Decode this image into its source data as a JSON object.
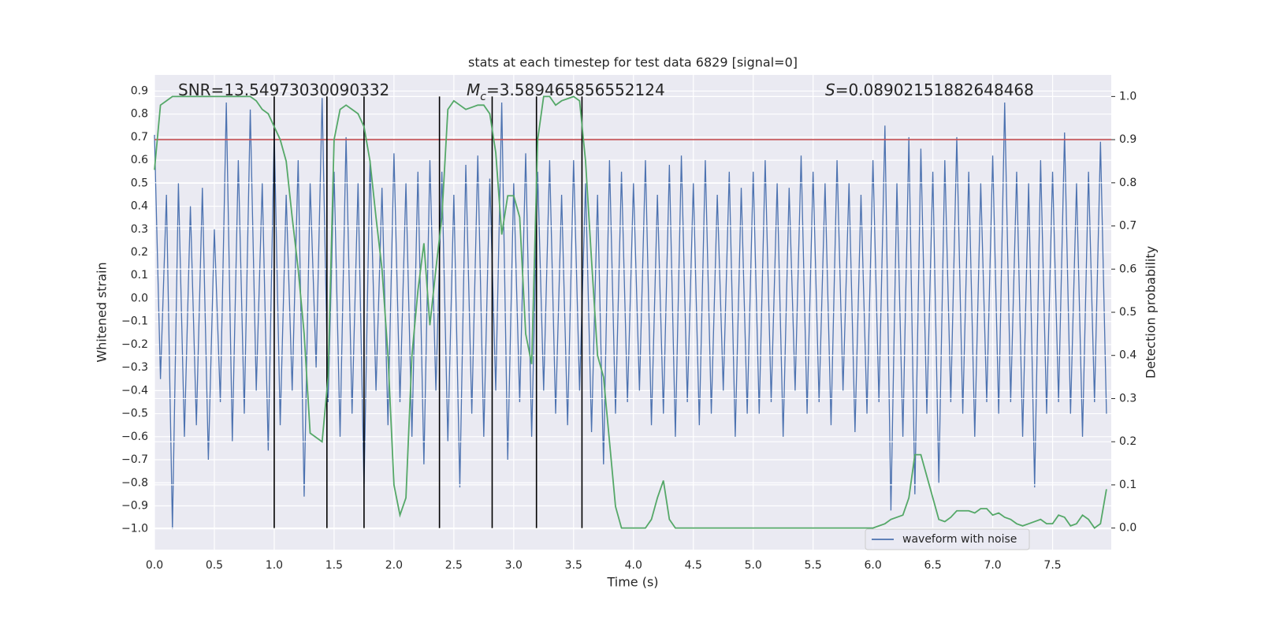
{
  "chart_data": {
    "type": "line",
    "title": "stats at each timestep for test data 6829 [signal=0]",
    "xlabel": "Time (s)",
    "ylabel": "Whitened strain",
    "y2label": "Detection probability",
    "grid": true,
    "legend": "lower right",
    "xlim": [
      0,
      7.99
    ],
    "ylim": [
      -1.09,
      0.97
    ],
    "y2lim": [
      -0.05,
      1.05
    ],
    "xticks": [
      {
        "value": 0,
        "label": "0.0"
      },
      0.5,
      {
        "value": 1,
        "label": "1.0"
      },
      1.5,
      {
        "value": 2,
        "label": "2.0"
      },
      2.5,
      {
        "value": 3,
        "label": "3.0"
      },
      3.5,
      {
        "value": 4,
        "label": "4.0"
      },
      4.5,
      {
        "value": 5,
        "label": "5.0"
      },
      5.5,
      {
        "value": 6,
        "label": "6.0"
      },
      6.5,
      {
        "value": 7,
        "label": "7.0"
      },
      7.5
    ],
    "yticks": [
      {
        "value": -1,
        "label": "−1.0"
      },
      {
        "value": -0.9,
        "label": "−0.9"
      },
      {
        "value": -0.8,
        "label": "−0.8"
      },
      {
        "value": -0.7,
        "label": "−0.7"
      },
      {
        "value": -0.6,
        "label": "−0.6"
      },
      {
        "value": -0.5,
        "label": "−0.5"
      },
      {
        "value": -0.4,
        "label": "−0.4"
      },
      {
        "value": -0.3,
        "label": "−0.3"
      },
      {
        "value": -0.2,
        "label": "−0.2"
      },
      {
        "value": -0.1,
        "label": "−0.1"
      },
      {
        "value": 0,
        "label": "0.0"
      },
      0.1,
      0.2,
      0.3,
      0.4,
      0.5,
      0.6,
      0.7,
      0.8,
      0.9
    ],
    "y2ticks": [
      {
        "value": 0,
        "label": "0.0"
      },
      0.1,
      0.2,
      0.3,
      0.4,
      0.5,
      0.6,
      0.7,
      0.8,
      0.9,
      {
        "value": 1,
        "label": "1.0"
      }
    ],
    "annotations": [
      {
        "text": "SNR=13.54973030090332"
      },
      {
        "text": "M",
        "sub": "c",
        "tail": "=3.589465856552124"
      },
      {
        "text": "S",
        "tail": "=0.08902151882648468"
      }
    ],
    "x": [
      0,
      0.05,
      0.1,
      0.15,
      0.2,
      0.25,
      0.3,
      0.35,
      0.4,
      0.45,
      0.5,
      0.55,
      0.6,
      0.65,
      0.7,
      0.75,
      0.8,
      0.85,
      0.9,
      0.95,
      1,
      1.05,
      1.1,
      1.15,
      1.2,
      1.25,
      1.3,
      1.35,
      1.4,
      1.45,
      1.5,
      1.55,
      1.6,
      1.65,
      1.7,
      1.75,
      1.8,
      1.85,
      1.9,
      1.95,
      2,
      2.05,
      2.1,
      2.15,
      2.2,
      2.25,
      2.3,
      2.35,
      2.4,
      2.45,
      2.5,
      2.55,
      2.6,
      2.65,
      2.7,
      2.75,
      2.8,
      2.85,
      2.9,
      2.95,
      3,
      3.05,
      3.1,
      3.15,
      3.2,
      3.25,
      3.3,
      3.35,
      3.4,
      3.45,
      3.5,
      3.55,
      3.6,
      3.65,
      3.7,
      3.75,
      3.8,
      3.85,
      3.9,
      3.95,
      4,
      4.05,
      4.1,
      4.15,
      4.2,
      4.25,
      4.3,
      4.35,
      4.4,
      4.45,
      4.5,
      4.55,
      4.6,
      4.65,
      4.7,
      4.75,
      4.8,
      4.85,
      4.9,
      4.95,
      5,
      5.05,
      5.1,
      5.15,
      5.2,
      5.25,
      5.3,
      5.35,
      5.4,
      5.45,
      5.5,
      5.55,
      5.6,
      5.65,
      5.7,
      5.75,
      5.8,
      5.85,
      5.9,
      5.95,
      6,
      6.05,
      6.1,
      6.15,
      6.2,
      6.25,
      6.3,
      6.35,
      6.4,
      6.45,
      6.5,
      6.55,
      6.6,
      6.65,
      6.7,
      6.75,
      6.8,
      6.85,
      6.9,
      6.95,
      7,
      7.05,
      7.1,
      7.15,
      7.2,
      7.25,
      7.3,
      7.35,
      7.4,
      7.45,
      7.5,
      7.55,
      7.6,
      7.65,
      7.7,
      7.75,
      7.8,
      7.85,
      7.9,
      7.95
    ],
    "series": [
      {
        "name": "waveform with noise",
        "color": "#4c72b0",
        "values": [
          0.71,
          -0.35,
          0.45,
          -1.0,
          0.5,
          -0.6,
          0.4,
          -0.55,
          0.48,
          -0.7,
          0.3,
          -0.45,
          0.85,
          -0.62,
          0.6,
          -0.5,
          0.82,
          -0.4,
          0.5,
          -0.66,
          0.72,
          -0.55,
          0.45,
          -0.4,
          0.6,
          -0.86,
          0.5,
          -0.3,
          0.87,
          -0.45,
          0.55,
          -0.6,
          0.7,
          -0.5,
          0.5,
          -0.82,
          0.6,
          -0.4,
          0.48,
          -0.55,
          0.63,
          -0.45,
          0.5,
          -0.6,
          0.55,
          -0.72,
          0.6,
          -0.4,
          0.55,
          -0.62,
          0.45,
          -0.82,
          0.58,
          -0.5,
          0.62,
          -0.6,
          0.52,
          -0.4,
          0.85,
          -0.7,
          0.5,
          -0.45,
          0.63,
          -0.6,
          0.55,
          -0.4,
          0.6,
          -0.5,
          0.45,
          -0.55,
          0.6,
          -0.4,
          0.5,
          -0.58,
          0.45,
          -0.72,
          0.6,
          -0.5,
          0.55,
          -0.45,
          0.5,
          -0.4,
          0.6,
          -0.55,
          0.45,
          -0.5,
          0.58,
          -0.6,
          0.62,
          -0.45,
          0.5,
          -0.55,
          0.6,
          -0.5,
          0.45,
          -0.4,
          0.55,
          -0.6,
          0.48,
          -0.5,
          0.55,
          -0.5,
          0.6,
          -0.45,
          0.5,
          -0.6,
          0.48,
          -0.4,
          0.62,
          -0.5,
          0.55,
          -0.45,
          0.5,
          -0.55,
          0.6,
          -0.4,
          0.5,
          -0.58,
          0.45,
          -0.5,
          0.6,
          -0.45,
          0.75,
          -0.92,
          0.5,
          -0.6,
          0.7,
          -0.85,
          0.65,
          -0.5,
          0.55,
          -0.8,
          0.6,
          -0.45,
          0.7,
          -0.5,
          0.55,
          -0.6,
          0.5,
          -0.45,
          0.62,
          -0.5,
          0.85,
          -0.45,
          0.55,
          -0.6,
          0.5,
          -0.82,
          0.6,
          -0.5,
          0.55,
          -0.45,
          0.72,
          -0.5,
          0.5,
          -0.6,
          0.55,
          -0.45,
          0.68,
          -0.5
        ]
      },
      {
        "color": "#55a868",
        "axis": "y2",
        "values": [
          0.83,
          0.98,
          0.99,
          1.0,
          1.0,
          1.0,
          1.0,
          1.0,
          1.0,
          1.0,
          1.0,
          1.0,
          1.0,
          1.0,
          1.0,
          1.0,
          1.0,
          0.99,
          0.97,
          0.96,
          0.93,
          0.9,
          0.85,
          0.72,
          0.6,
          0.45,
          0.22,
          0.21,
          0.2,
          0.35,
          0.9,
          0.97,
          0.98,
          0.97,
          0.96,
          0.93,
          0.85,
          0.72,
          0.6,
          0.4,
          0.1,
          0.03,
          0.07,
          0.4,
          0.55,
          0.66,
          0.47,
          0.6,
          0.72,
          0.97,
          0.99,
          0.98,
          0.97,
          0.975,
          0.98,
          0.98,
          0.96,
          0.87,
          0.68,
          0.77,
          0.77,
          0.72,
          0.45,
          0.38,
          0.9,
          1.0,
          1.0,
          0.98,
          0.99,
          0.995,
          1.0,
          0.99,
          0.85,
          0.62,
          0.4,
          0.35,
          0.2,
          0.05,
          0.0,
          0.0,
          0.0,
          0.0,
          0.0,
          0.02,
          0.07,
          0.11,
          0.02,
          0.0,
          0.0,
          0.0,
          0.0,
          0.0,
          0.0,
          0.0,
          0.0,
          0.0,
          0.0,
          0.0,
          0.0,
          0.0,
          0.0,
          0.0,
          0.0,
          0.0,
          0.0,
          0.0,
          0.0,
          0.0,
          0.0,
          0.0,
          0.0,
          0.0,
          0.0,
          0.0,
          0.0,
          0.0,
          0.0,
          0.0,
          0.0,
          0.0,
          0.0,
          0.005,
          0.01,
          0.02,
          0.025,
          0.03,
          0.07,
          0.17,
          0.17,
          0.12,
          0.07,
          0.02,
          0.015,
          0.025,
          0.04,
          0.04,
          0.04,
          0.035,
          0.045,
          0.045,
          0.03,
          0.035,
          0.025,
          0.02,
          0.01,
          0.005,
          0.01,
          0.015,
          0.02,
          0.01,
          0.01,
          0.03,
          0.025,
          0.005,
          0.01,
          0.03,
          0.02,
          0.0,
          0.01,
          0.09
        ]
      }
    ],
    "hlines": [
      {
        "value": 0.9,
        "axis": "y2",
        "color": "#c44e52"
      }
    ],
    "vlines": {
      "values": [
        1.0,
        1.44,
        1.75,
        2.38,
        2.82,
        3.19,
        3.57
      ],
      "ymin": 0,
      "ymax": 1,
      "axis": "y2",
      "color": "#000000"
    }
  }
}
